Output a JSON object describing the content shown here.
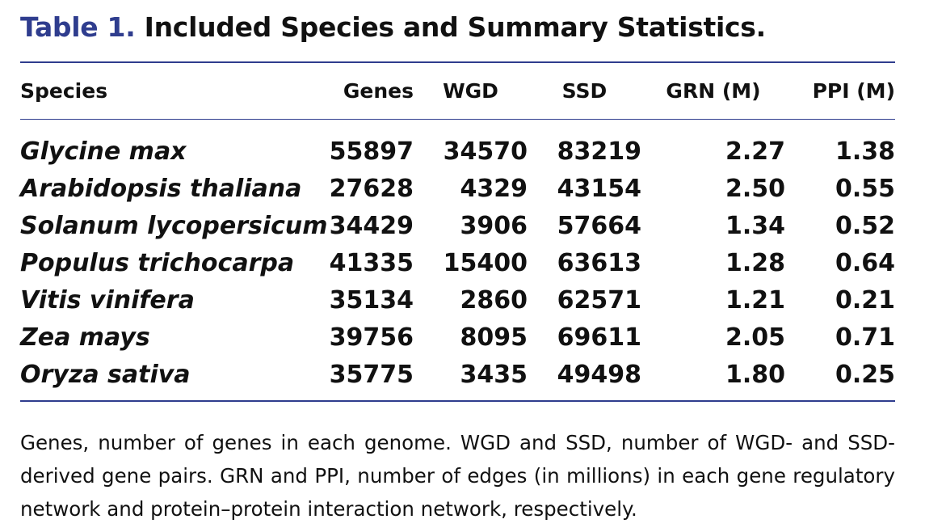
{
  "caption": {
    "label": "Table 1.",
    "title": "Included Species and Summary Statistics."
  },
  "columns": [
    "Species",
    "Genes",
    "WGD",
    "SSD",
    "GRN (M)",
    "PPI (M)"
  ],
  "rows": [
    {
      "species": "Glycine max",
      "genes": "55897",
      "wgd": "34570",
      "ssd": "83219",
      "grn": "2.27",
      "ppi": "1.38"
    },
    {
      "species": "Arabidopsis thaliana",
      "genes": "27628",
      "wgd": "4329",
      "ssd": "43154",
      "grn": "2.50",
      "ppi": "0.55"
    },
    {
      "species": "Solanum lycopersicum",
      "genes": "34429",
      "wgd": "3906",
      "ssd": "57664",
      "grn": "1.34",
      "ppi": "0.52"
    },
    {
      "species": "Populus trichocarpa",
      "genes": "41335",
      "wgd": "15400",
      "ssd": "63613",
      "grn": "1.28",
      "ppi": "0.64"
    },
    {
      "species": "Vitis vinifera",
      "genes": "35134",
      "wgd": "2860",
      "ssd": "62571",
      "grn": "1.21",
      "ppi": "0.21"
    },
    {
      "species": "Zea mays",
      "genes": "39756",
      "wgd": "8095",
      "ssd": "69611",
      "grn": "2.05",
      "ppi": "0.71"
    },
    {
      "species": "Oryza sativa",
      "genes": "35775",
      "wgd": "3435",
      "ssd": "49498",
      "grn": "1.80",
      "ppi": "0.25"
    }
  ],
  "footnote": "Genes, number of genes in each genome. WGD and SSD, number of WGD- and SSD-derived gene pairs. GRN and PPI, number of edges (in millions) in each gene regulatory network and protein–protein interaction network, respectively.",
  "colors": {
    "accent": "#2f3d8e",
    "text": "#111111"
  }
}
